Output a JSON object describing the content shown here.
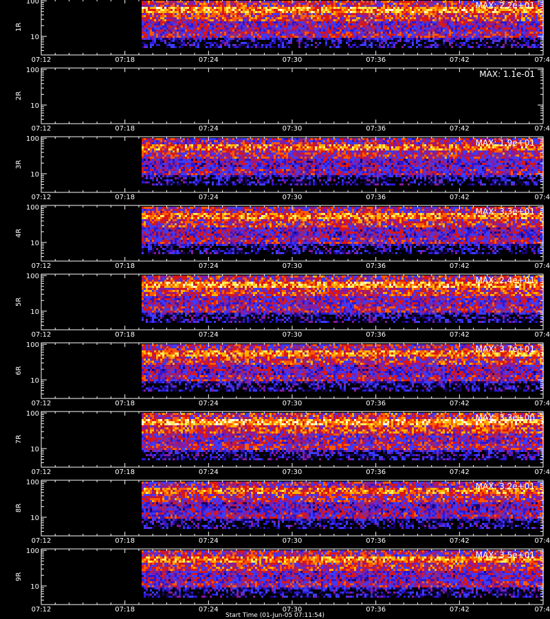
{
  "chart_data": {
    "type": "heatmap",
    "time_ticks": [
      "07:12",
      "07:18",
      "07:24",
      "07:30",
      "07:36",
      "07:42",
      "07:4"
    ],
    "y_ticks": [
      "100",
      "10"
    ],
    "y_scale": "log",
    "ylim": [
      3,
      110
    ],
    "colormap": [
      "#000000",
      "#1a0066",
      "#2a18d0",
      "#3c3cff",
      "#8a1a9a",
      "#d81818",
      "#ff5a00",
      "#ffb000",
      "#ffee60",
      "#ffffff"
    ],
    "data_start_tick": 0.2,
    "bands": [
      {
        "label": "1R",
        "max_label": "MAX: 2.2e+01",
        "intensity": 0.95
      },
      {
        "label": "2R",
        "max_label": "MAX: 1.1e-01",
        "intensity": 0
      },
      {
        "label": "3R",
        "max_label": "MAX: 1.9e+01",
        "intensity": 0.85
      },
      {
        "label": "4R",
        "max_label": "MAX: 3.3e+01",
        "intensity": 0.9
      },
      {
        "label": "5R",
        "max_label": "MAX: 2.4e+01",
        "intensity": 0.95
      },
      {
        "label": "6R",
        "max_label": "MAX: 3.7e+01",
        "intensity": 0.9
      },
      {
        "label": "7R",
        "max_label": "MAX: 3.3e+00",
        "intensity": 1.0
      },
      {
        "label": "8R",
        "max_label": "MAX: 3.2e+01",
        "intensity": 0.85
      },
      {
        "label": "9R",
        "max_label": "MAX: 3.5e+01",
        "intensity": 0.9
      }
    ]
  },
  "footer": {
    "xlabel": "Start Time (01-Jun-05 07:11:54)"
  }
}
